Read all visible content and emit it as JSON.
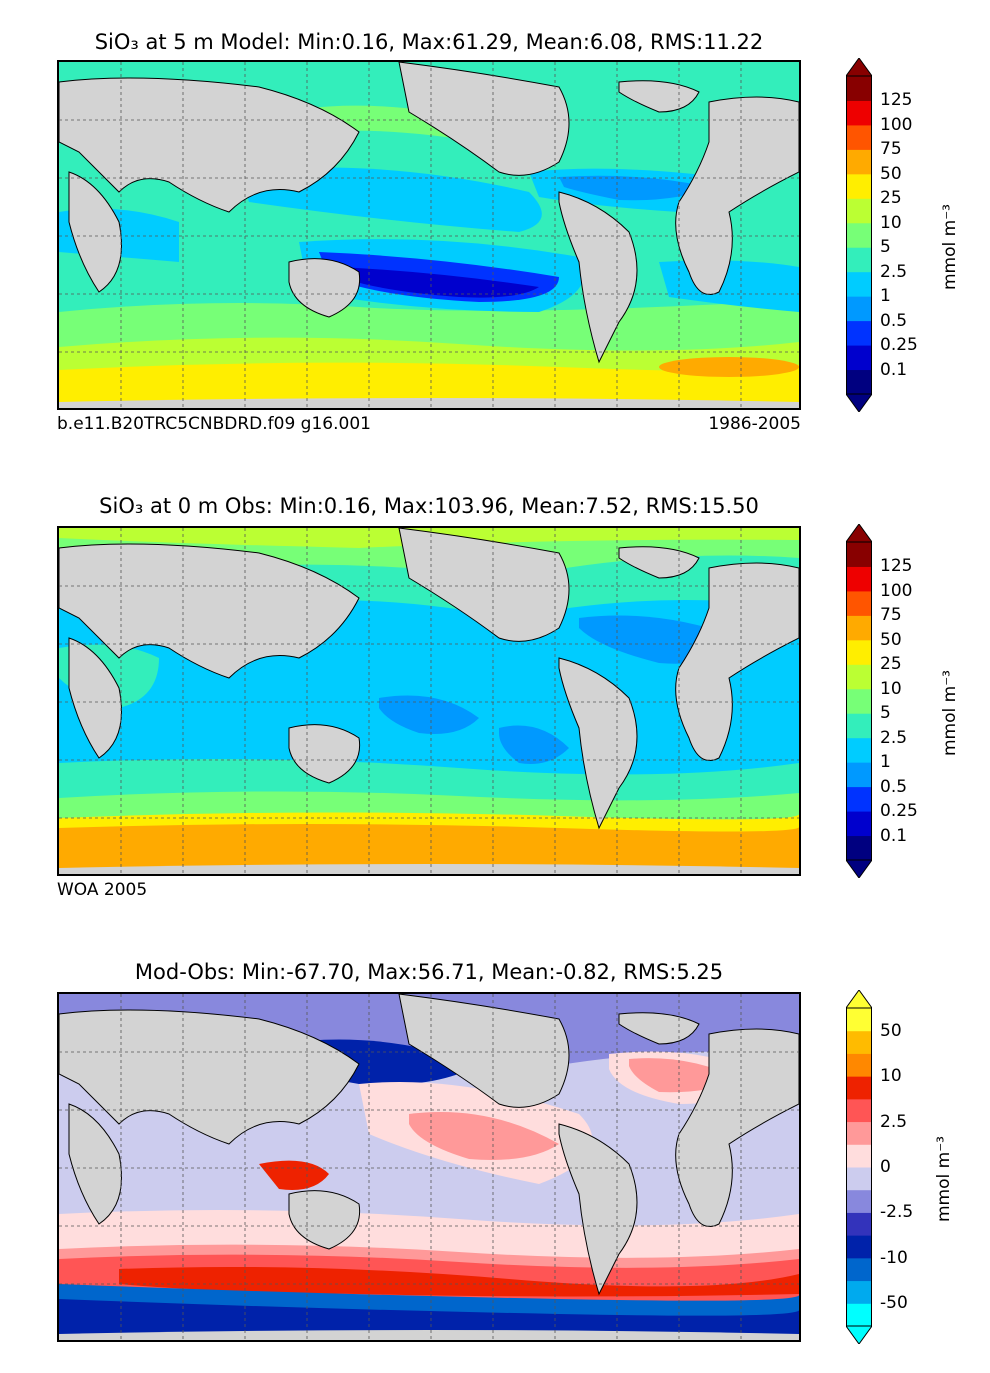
{
  "panels": [
    {
      "title": "SiO₃ at 5 m Model: Min:0.16, Max:61.29, Mean:6.08, RMS:11.22",
      "caption_left": "b.e11.B20TRC5CNBDRD.f09 g16.001",
      "caption_right": "1986-2005",
      "colorbar": {
        "unit": "mmol m⁻³",
        "colors": [
          "#000080",
          "#0000cd",
          "#0033ff",
          "#0099ff",
          "#00ccff",
          "#33eebb",
          "#77ff77",
          "#bbff33",
          "#ffee00",
          "#ffaa00",
          "#ff5500",
          "#ee0000",
          "#880000"
        ],
        "ticks": [
          "125",
          "100",
          "75",
          "50",
          "25",
          "10",
          "5",
          "2.5",
          "1",
          "0.5",
          "0.25",
          "0.1"
        ]
      }
    },
    {
      "title": "SiO₃ at 0 m Obs: Min:0.16, Max:103.96, Mean:7.52, RMS:15.50",
      "caption_left": "WOA 2005",
      "caption_right": "",
      "colorbar": {
        "unit": "mmol m⁻³",
        "colors": [
          "#000080",
          "#0000cd",
          "#0033ff",
          "#0099ff",
          "#00ccff",
          "#33eebb",
          "#77ff77",
          "#bbff33",
          "#ffee00",
          "#ffaa00",
          "#ff5500",
          "#ee0000",
          "#880000"
        ],
        "ticks": [
          "125",
          "100",
          "75",
          "50",
          "25",
          "10",
          "5",
          "2.5",
          "1",
          "0.5",
          "0.25",
          "0.1"
        ]
      }
    },
    {
      "title": "Mod-Obs: Min:-67.70, Max:56.71, Mean:-0.82, RMS:5.25",
      "caption_left": "",
      "caption_right": "",
      "colorbar": {
        "unit": "mmol m⁻³",
        "colors": [
          "#00ffff",
          "#00aaee",
          "#0066cc",
          "#0022aa",
          "#3333bb",
          "#8888dd",
          "#ccccee",
          "#ffdddd",
          "#ff9999",
          "#ff5555",
          "#ee2200",
          "#ff8800",
          "#ffbb00",
          "#ffff33"
        ],
        "ticks": [
          "50",
          "10",
          "2.5",
          "0",
          "-2.5",
          "-10",
          "-50"
        ]
      }
    }
  ]
}
